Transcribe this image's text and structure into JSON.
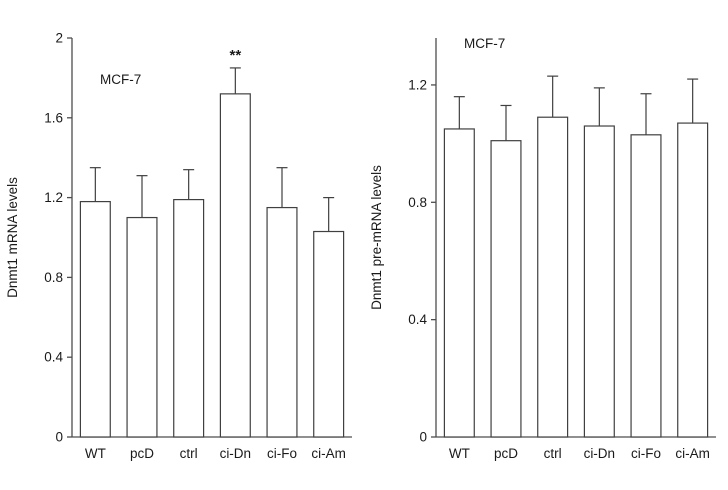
{
  "figure": {
    "background": "#ffffff",
    "axis_color": "#4d4d4d",
    "bar_fill": "#ffffff",
    "bar_stroke": "#404040",
    "text_color": "#1a1a1a"
  },
  "chart_data": [
    {
      "type": "bar",
      "title": "MCF-7",
      "ylabel": "Dnmt1 mRNA levels",
      "xlabel": "",
      "categories": [
        "WT",
        "pcD",
        "ctrl",
        "ci-Dn",
        "ci-Fo",
        "ci-Am"
      ],
      "values": [
        1.18,
        1.1,
        1.19,
        1.72,
        1.15,
        1.03
      ],
      "errors": [
        0.17,
        0.21,
        0.15,
        0.13,
        0.2,
        0.17
      ],
      "yticks": [
        0,
        0.4,
        0.8,
        1.2,
        1.6,
        2
      ],
      "ylim": [
        0,
        2
      ],
      "grid": false,
      "legend": "none",
      "annotations": [
        {
          "category": "ci-Dn",
          "text": "**"
        }
      ]
    },
    {
      "type": "bar",
      "title": "MCF-7",
      "ylabel": "Dnmt1 pre-mRNA levels",
      "xlabel": "",
      "categories": [
        "WT",
        "pcD",
        "ctrl",
        "ci-Dn",
        "ci-Fo",
        "ci-Am"
      ],
      "values": [
        1.05,
        1.01,
        1.09,
        1.06,
        1.03,
        1.07
      ],
      "errors": [
        0.11,
        0.12,
        0.14,
        0.13,
        0.14,
        0.15
      ],
      "yticks": [
        0,
        0.4,
        0.8,
        1.2
      ],
      "ylim": [
        0,
        1.36
      ],
      "grid": false,
      "legend": "none",
      "annotations": []
    }
  ]
}
